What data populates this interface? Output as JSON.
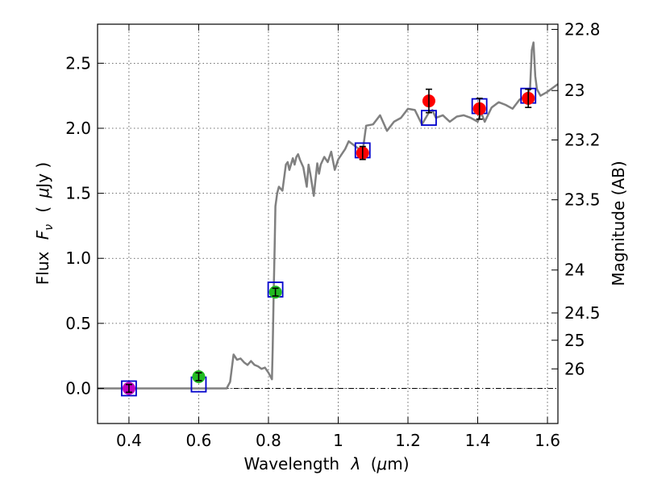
{
  "chart_data": {
    "type": "scatter",
    "title": "",
    "xlabel_prefix": "Wavelength",
    "xlabel_symbol": "λ",
    "xlabel_unit_open": "(",
    "xlabel_unit_mu": "μ",
    "xlabel_unit_rest": "m)",
    "ylabel_prefix": "Flux",
    "ylabel_symbol": "F",
    "ylabel_subscript": "ν",
    "ylabel_unit_open": "(",
    "ylabel_unit_mu": "μ",
    "ylabel_unit_rest": "Jy )",
    "y2label": "Magnitude (AB)",
    "xlim": [
      0.31,
      1.63
    ],
    "ylim": [
      -0.27,
      2.8
    ],
    "xticks": [
      {
        "v": 0.4,
        "label": "0.4"
      },
      {
        "v": 0.6,
        "label": "0.6"
      },
      {
        "v": 0.8,
        "label": "0.8"
      },
      {
        "v": 1.0,
        "label": "1"
      },
      {
        "v": 1.2,
        "label": "1.2"
      },
      {
        "v": 1.4,
        "label": "1.4"
      },
      {
        "v": 1.6,
        "label": "1.6"
      }
    ],
    "yticks": [
      {
        "v": 0.0,
        "label": "0.0"
      },
      {
        "v": 0.5,
        "label": "0.5"
      },
      {
        "v": 1.0,
        "label": "1.0"
      },
      {
        "v": 1.5,
        "label": "1.5"
      },
      {
        "v": 2.0,
        "label": "2.0"
      },
      {
        "v": 2.5,
        "label": "2.5"
      }
    ],
    "y2ticks": [
      {
        "flux": 2.76,
        "label": "22.8"
      },
      {
        "flux": 2.29,
        "label": "23"
      },
      {
        "flux": 1.91,
        "label": "23.2"
      },
      {
        "flux": 1.45,
        "label": "23.5"
      },
      {
        "flux": 0.91,
        "label": "24"
      },
      {
        "flux": 0.58,
        "label": "24.5"
      },
      {
        "flux": 0.37,
        "label": "25"
      },
      {
        "flux": 0.15,
        "label": "26"
      }
    ],
    "model_spectrum": {
      "name": "model",
      "color": "#808080",
      "x": [
        0.31,
        0.5,
        0.68,
        0.69,
        0.7,
        0.71,
        0.72,
        0.73,
        0.74,
        0.75,
        0.76,
        0.77,
        0.78,
        0.79,
        0.8,
        0.81,
        0.812,
        0.815,
        0.818,
        0.82,
        0.825,
        0.83,
        0.84,
        0.85,
        0.855,
        0.86,
        0.87,
        0.875,
        0.88,
        0.885,
        0.89,
        0.9,
        0.91,
        0.915,
        0.92,
        0.93,
        0.94,
        0.945,
        0.95,
        0.96,
        0.97,
        0.98,
        0.99,
        1.0,
        1.01,
        1.02,
        1.03,
        1.05,
        1.07,
        1.08,
        1.1,
        1.12,
        1.14,
        1.16,
        1.18,
        1.2,
        1.22,
        1.24,
        1.26,
        1.27,
        1.28,
        1.3,
        1.32,
        1.34,
        1.36,
        1.38,
        1.4,
        1.41,
        1.42,
        1.44,
        1.46,
        1.48,
        1.5,
        1.52,
        1.54,
        1.55,
        1.555,
        1.56,
        1.565,
        1.57,
        1.58,
        1.6,
        1.62,
        1.63
      ],
      "y": [
        0.0,
        0.0,
        0.0,
        0.05,
        0.26,
        0.22,
        0.23,
        0.2,
        0.18,
        0.21,
        0.18,
        0.17,
        0.15,
        0.16,
        0.12,
        0.07,
        0.3,
        0.75,
        1.1,
        1.4,
        1.5,
        1.55,
        1.52,
        1.72,
        1.74,
        1.68,
        1.77,
        1.72,
        1.78,
        1.8,
        1.76,
        1.7,
        1.55,
        1.72,
        1.65,
        1.48,
        1.73,
        1.65,
        1.72,
        1.78,
        1.74,
        1.82,
        1.68,
        1.76,
        1.8,
        1.84,
        1.9,
        1.86,
        1.82,
        2.02,
        2.03,
        2.1,
        1.98,
        2.05,
        2.08,
        2.15,
        2.14,
        2.03,
        2.12,
        2.14,
        2.08,
        2.1,
        2.05,
        2.09,
        2.1,
        2.08,
        2.05,
        2.12,
        2.05,
        2.16,
        2.2,
        2.18,
        2.15,
        2.22,
        2.25,
        2.3,
        2.6,
        2.66,
        2.4,
        2.3,
        2.25,
        2.28,
        2.32,
        2.34
      ]
    },
    "observed_points": [
      {
        "x": 0.4,
        "y": 0.0,
        "err": 0.03,
        "color": "#bf00bf"
      },
      {
        "x": 0.6,
        "y": 0.09,
        "err": 0.03,
        "color": "#22bb22"
      },
      {
        "x": 0.82,
        "y": 0.74,
        "err": 0.03,
        "color": "#22bb22"
      },
      {
        "x": 1.07,
        "y": 1.81,
        "err": 0.05,
        "color": "#ff0000"
      },
      {
        "x": 1.26,
        "y": 2.21,
        "err": 0.09,
        "color": "#ff0000"
      },
      {
        "x": 1.405,
        "y": 2.15,
        "err": 0.08,
        "color": "#ff0000"
      },
      {
        "x": 1.545,
        "y": 2.23,
        "err": 0.07,
        "color": "#ff0000"
      }
    ],
    "model_photometry": [
      {
        "x": 0.4,
        "y": 0.0
      },
      {
        "x": 0.6,
        "y": 0.03
      },
      {
        "x": 0.82,
        "y": 0.76
      },
      {
        "x": 1.07,
        "y": 1.83
      },
      {
        "x": 1.26,
        "y": 2.08
      },
      {
        "x": 1.405,
        "y": 2.17
      },
      {
        "x": 1.545,
        "y": 2.25
      }
    ],
    "zero_line": 0.0,
    "grid": true
  }
}
